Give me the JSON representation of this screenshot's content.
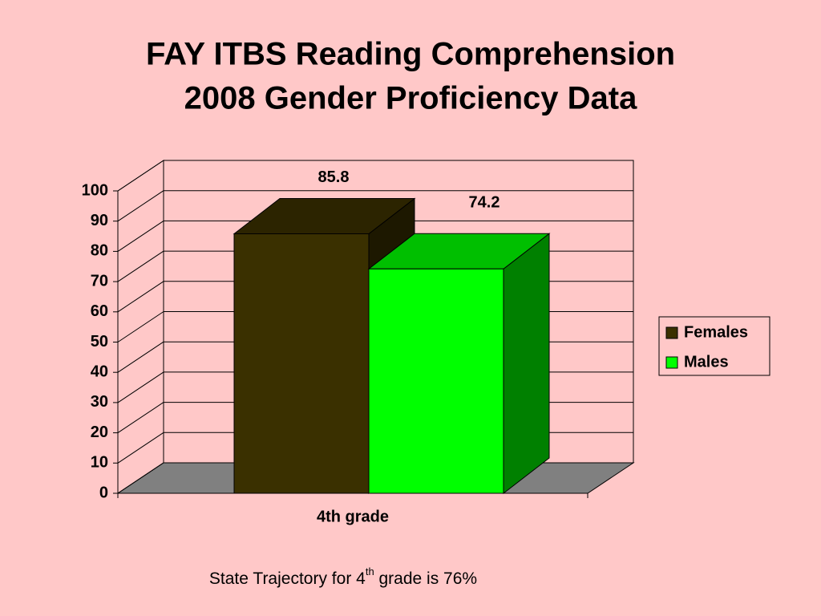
{
  "chart_data": {
    "type": "bar3d",
    "title_lines": [
      "FAY ITBS Reading Comprehension",
      "2008 Gender Proficiency Data"
    ],
    "categories": [
      "4th grade"
    ],
    "series": [
      {
        "name": "Females",
        "color": "#3a3000",
        "values": [
          85.8
        ]
      },
      {
        "name": "Males",
        "color": "#00ff00",
        "values": [
          74.2
        ]
      }
    ],
    "ylim": [
      0,
      100
    ],
    "yticks": [
      0,
      10,
      20,
      30,
      40,
      50,
      60,
      70,
      80,
      90,
      100
    ],
    "grid": true,
    "legend": "right",
    "footnote": [
      "State Trajectory for 4",
      "th",
      " grade is 76%"
    ]
  }
}
